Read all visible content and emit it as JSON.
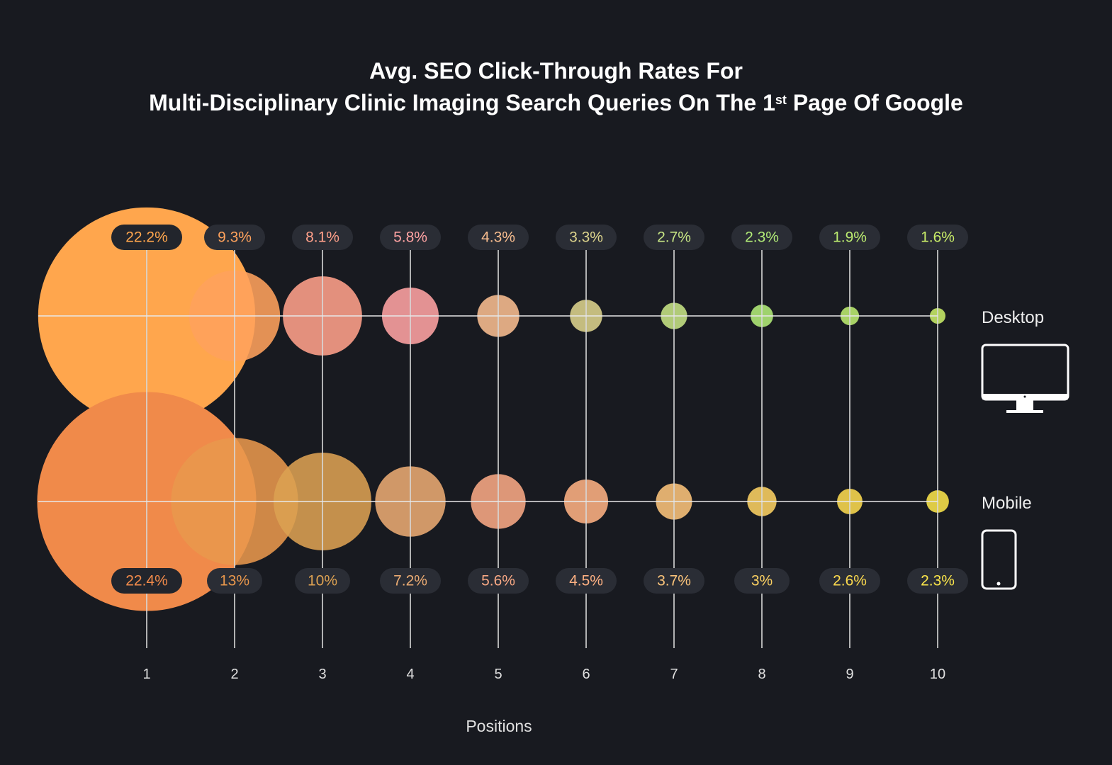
{
  "title_line1": "Avg. SEO Click-Through Rates For",
  "title_line2_pre": "Multi-Disciplinary Clinic Imaging Search Queries On The 1",
  "title_line2_sup": "st",
  "title_line2_post": " Page Of Google",
  "background": "#181a20",
  "chart_data": {
    "type": "bubble",
    "xlabel": "Positions",
    "categories": [
      "1",
      "2",
      "3",
      "4",
      "5",
      "6",
      "7",
      "8",
      "9",
      "10"
    ],
    "series": [
      {
        "name": "Desktop",
        "icon": "desktop-monitor-icon",
        "values": [
          22.2,
          9.3,
          8.1,
          5.8,
          4.3,
          3.3,
          2.7,
          2.3,
          1.9,
          1.6
        ],
        "labels": [
          "22.2%",
          "9.3%",
          "8.1%",
          "5.8%",
          "4.3%",
          "3.3%",
          "2.7%",
          "2.3%",
          "1.9%",
          "1.6%"
        ],
        "colors": [
          "#ffa64d",
          "#ffa25c",
          "#ffa08a",
          "#ffa3a3",
          "#f8bd8f",
          "#dcd38c",
          "#c6e484",
          "#b2ec78",
          "#bcec70",
          "#c8ec68"
        ]
      },
      {
        "name": "Mobile",
        "icon": "mobile-phone-icon",
        "values": [
          22.4,
          13,
          10,
          7.2,
          5.6,
          4.5,
          3.7,
          3,
          2.6,
          2.3
        ],
        "labels": [
          "22.4%",
          "13%",
          "10%",
          "7.2%",
          "5.6%",
          "4.5%",
          "3.7%",
          "3%",
          "2.6%",
          "2.3%"
        ],
        "colors": [
          "#f08a4a",
          "#e8974c",
          "#dca152",
          "#e9aa72",
          "#f8a884",
          "#fdb082",
          "#fac37a",
          "#fbd062",
          "#fbd94e",
          "#f9e44a"
        ]
      }
    ],
    "grid": true
  }
}
